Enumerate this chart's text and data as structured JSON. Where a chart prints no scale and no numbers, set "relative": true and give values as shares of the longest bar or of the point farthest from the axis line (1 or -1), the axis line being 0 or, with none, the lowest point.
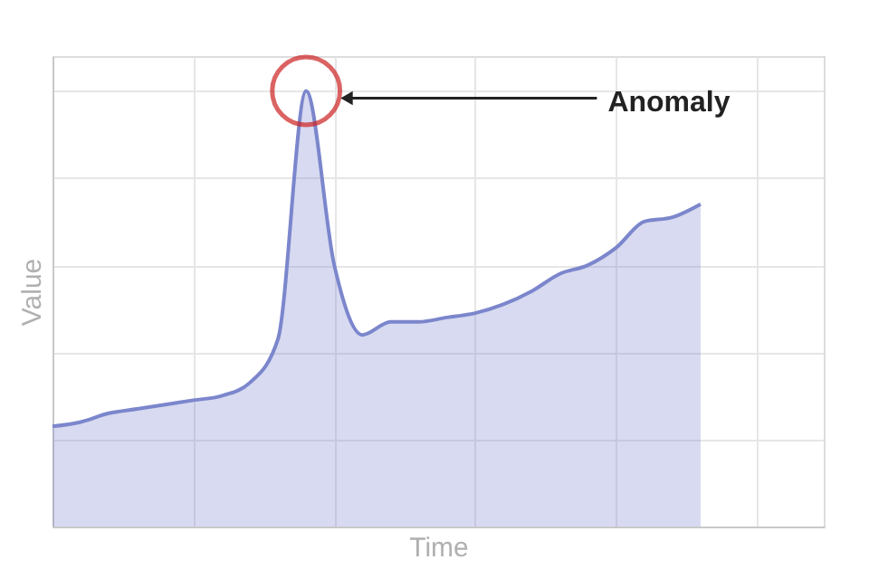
{
  "chart_data": {
    "type": "area",
    "relative": true,
    "xlabel": "Time",
    "ylabel": "Value",
    "grid": true,
    "categories": [
      null,
      null,
      null,
      null,
      null,
      null,
      null,
      null,
      null,
      null,
      null,
      null,
      null,
      null,
      null,
      null,
      null,
      null,
      null,
      null,
      null,
      null,
      null,
      null
    ],
    "series": [
      {
        "color": "#7b86cc",
        "values": [
          0.23,
          0.24,
          0.26,
          0.27,
          0.28,
          0.29,
          0.3,
          0.33,
          0.43,
          1.0,
          0.6,
          0.44,
          0.47,
          0.47,
          0.48,
          0.49,
          0.51,
          0.54,
          0.58,
          0.6,
          0.64,
          0.7,
          0.71,
          0.74
        ]
      }
    ],
    "annotations": [
      "Anomaly"
    ]
  }
}
